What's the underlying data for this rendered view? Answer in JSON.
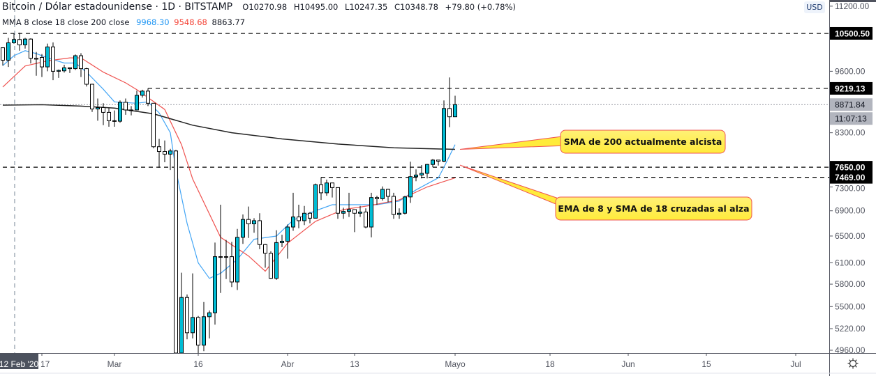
{
  "header": {
    "symbol": "Bitcoin / Dólar estadounidense · 1D · BITSTAMP",
    "open": "O10270.98",
    "high": "H10495.00",
    "low": "L10247.35",
    "close": "C10348.78",
    "change": "+79.80 (+0.78%)",
    "indicator_label": "MMA 8 close 18 close 200 close",
    "ma_values": [
      "9968.30",
      "9548.68",
      "8863.77"
    ]
  },
  "currency": "USD",
  "colors": {
    "up": "#00bcd4",
    "down": "#ffffff",
    "ema8": "#42a5f5",
    "sma18": "#ef5350",
    "sma200": "#222222",
    "callout_fill": "#ffeb3b",
    "callout_border": "#ef5350"
  },
  "chart_data": {
    "type": "candlestick",
    "scale": "log",
    "ylim": [
      4900,
      11300
    ],
    "candles": [
      [
        "2020-02-10",
        10150,
        10160,
        9730,
        9855
      ],
      [
        "2020-02-11",
        9855,
        10390,
        9700,
        10270
      ],
      [
        "2020-02-12",
        10271,
        10495,
        10247,
        10349
      ],
      [
        "2020-02-13",
        10349,
        10520,
        10080,
        10220
      ],
      [
        "2020-02-14",
        10220,
        10390,
        10130,
        10360
      ],
      [
        "2020-02-15",
        10360,
        10380,
        9780,
        9900
      ],
      [
        "2020-02-16",
        9900,
        10050,
        9500,
        9880
      ],
      [
        "2020-02-17",
        9920,
        10000,
        9470,
        9700
      ],
      [
        "2020-02-18",
        9700,
        10250,
        9600,
        10170
      ],
      [
        "2020-02-19",
        10170,
        10280,
        9400,
        9600
      ],
      [
        "2020-02-20",
        9600,
        9640,
        9450,
        9620
      ],
      [
        "2020-02-21",
        9610,
        9750,
        9570,
        9680
      ],
      [
        "2020-02-22",
        9680,
        9690,
        9560,
        9660
      ],
      [
        "2020-02-23",
        9660,
        9990,
        9630,
        9960
      ],
      [
        "2020-02-24",
        9960,
        10020,
        9470,
        9660
      ],
      [
        "2020-02-25",
        9660,
        9680,
        9260,
        9310
      ],
      [
        "2020-02-26",
        9310,
        9320,
        8720,
        8780
      ],
      [
        "2020-02-27",
        8780,
        9000,
        8540,
        8810
      ],
      [
        "2020-02-28",
        8810,
        8900,
        8450,
        8710
      ],
      [
        "2020-02-29",
        8710,
        8800,
        8420,
        8540
      ],
      [
        "2020-03-01",
        8540,
        8750,
        8420,
        8530
      ],
      [
        "2020-03-02",
        8530,
        8960,
        8500,
        8920
      ],
      [
        "2020-03-03",
        8920,
        9000,
        8660,
        8760
      ],
      [
        "2020-03-04",
        8760,
        8840,
        8650,
        8760
      ],
      [
        "2020-03-05",
        8760,
        9170,
        8750,
        9070
      ],
      [
        "2020-03-06",
        9070,
        9190,
        9020,
        9160
      ],
      [
        "2020-03-07",
        9160,
        9219,
        8840,
        8900
      ],
      [
        "2020-03-08",
        8900,
        8900,
        8000,
        8030
      ],
      [
        "2020-03-09",
        8030,
        8180,
        7640,
        7940
      ],
      [
        "2020-03-10",
        7940,
        8150,
        7740,
        7890
      ],
      [
        "2020-03-11",
        7890,
        7990,
        7600,
        7950
      ],
      [
        "2020-03-12",
        7950,
        7970,
        4450,
        4860
      ],
      [
        "2020-03-13",
        4860,
        5960,
        3850,
        5620
      ],
      [
        "2020-03-14",
        5620,
        5660,
        5090,
        5170
      ],
      [
        "2020-03-15",
        5170,
        5950,
        5100,
        5360
      ],
      [
        "2020-03-16",
        5360,
        5380,
        4450,
        5020
      ],
      [
        "2020-03-17",
        5020,
        5560,
        4950,
        5370
      ],
      [
        "2020-03-18",
        5370,
        5450,
        5100,
        5420
      ],
      [
        "2020-03-19",
        5420,
        6400,
        5270,
        6190
      ],
      [
        "2020-03-20",
        6190,
        7000,
        5680,
        6180
      ],
      [
        "2020-03-21",
        6180,
        6440,
        5870,
        6190
      ],
      [
        "2020-03-22",
        6190,
        6410,
        5760,
        5830
      ],
      [
        "2020-03-23",
        5830,
        6610,
        5720,
        6480
      ],
      [
        "2020-03-24",
        6480,
        6840,
        6380,
        6760
      ],
      [
        "2020-03-25",
        6760,
        6970,
        6470,
        6690
      ],
      [
        "2020-03-26",
        6690,
        6780,
        6550,
        6740
      ],
      [
        "2020-03-27",
        6740,
        6860,
        6300,
        6370
      ],
      [
        "2020-03-28",
        6370,
        6380,
        6030,
        6240
      ],
      [
        "2020-03-29",
        6240,
        6270,
        5870,
        5880
      ],
      [
        "2020-03-30",
        5880,
        6590,
        5860,
        6400
      ],
      [
        "2020-03-31",
        6400,
        6520,
        6330,
        6420
      ],
      [
        "2020-04-01",
        6420,
        6680,
        6160,
        6640
      ],
      [
        "2020-04-02",
        6640,
        7200,
        6580,
        6800
      ],
      [
        "2020-04-03",
        6800,
        7000,
        6620,
        6740
      ],
      [
        "2020-04-04",
        6740,
        6980,
        6670,
        6860
      ],
      [
        "2020-04-05",
        6860,
        6880,
        6700,
        6780
      ],
      [
        "2020-04-06",
        6780,
        7360,
        6780,
        7340
      ],
      [
        "2020-04-07",
        7340,
        7469,
        7080,
        7200
      ],
      [
        "2020-04-08",
        7200,
        7430,
        7150,
        7370
      ],
      [
        "2020-04-09",
        7370,
        7370,
        7120,
        7290
      ],
      [
        "2020-04-10",
        7290,
        7290,
        6770,
        6860
      ],
      [
        "2020-04-11",
        6860,
        6950,
        6770,
        6890
      ],
      [
        "2020-04-12",
        6890,
        7200,
        6800,
        6920
      ],
      [
        "2020-04-13",
        6920,
        6920,
        6560,
        6860
      ],
      [
        "2020-04-14",
        6860,
        6980,
        6800,
        6880
      ],
      [
        "2020-04-15",
        6880,
        6940,
        6620,
        6640
      ],
      [
        "2020-04-16",
        6640,
        7200,
        6480,
        7120
      ],
      [
        "2020-04-17",
        7120,
        7150,
        7000,
        7100
      ],
      [
        "2020-04-18",
        7100,
        7310,
        7070,
        7260
      ],
      [
        "2020-04-19",
        7260,
        7270,
        7040,
        7140
      ],
      [
        "2020-04-20",
        7140,
        7200,
        6770,
        6840
      ],
      [
        "2020-04-21",
        6840,
        6940,
        6770,
        6860
      ],
      [
        "2020-04-22",
        6860,
        7150,
        6840,
        7130
      ],
      [
        "2020-04-23",
        7130,
        7750,
        7030,
        7480
      ],
      [
        "2020-04-24",
        7480,
        7610,
        7400,
        7510
      ],
      [
        "2020-04-25",
        7510,
        7690,
        7450,
        7540
      ],
      [
        "2020-04-26",
        7540,
        7710,
        7450,
        7700
      ],
      [
        "2020-04-27",
        7700,
        7800,
        7650,
        7780
      ],
      [
        "2020-04-28",
        7780,
        7780,
        7680,
        7760
      ],
      [
        "2020-04-29",
        7760,
        8960,
        7740,
        8790
      ],
      [
        "2020-04-30",
        8790,
        9460,
        8410,
        8620
      ],
      [
        "2020-05-01",
        8620,
        9060,
        8620,
        8872
      ]
    ],
    "series": [
      {
        "key": "ema8",
        "points": [
          [
            "2020-02-10",
            9730
          ],
          [
            "2020-02-12",
            9960
          ],
          [
            "2020-02-14",
            10080
          ],
          [
            "2020-02-16",
            10010
          ],
          [
            "2020-02-18",
            9910
          ],
          [
            "2020-02-21",
            9790
          ],
          [
            "2020-02-23",
            9790
          ],
          [
            "2020-02-25",
            9580
          ],
          [
            "2020-02-28",
            9200
          ],
          [
            "2020-03-01",
            8930
          ],
          [
            "2020-03-05",
            8900
          ],
          [
            "2020-03-07",
            8930
          ],
          [
            "2020-03-09",
            8700
          ],
          [
            "2020-03-11",
            8300
          ],
          [
            "2020-03-12",
            7600
          ],
          [
            "2020-03-14",
            6700
          ],
          [
            "2020-03-16",
            6100
          ],
          [
            "2020-03-18",
            5880
          ],
          [
            "2020-03-20",
            5950
          ],
          [
            "2020-03-23",
            6150
          ],
          [
            "2020-03-26",
            6450
          ],
          [
            "2020-03-30",
            6500
          ],
          [
            "2020-04-02",
            6750
          ],
          [
            "2020-04-06",
            6900
          ],
          [
            "2020-04-09",
            7000
          ],
          [
            "2020-04-13",
            7000
          ],
          [
            "2020-04-17",
            7000
          ],
          [
            "2020-04-21",
            7060
          ],
          [
            "2020-04-24",
            7250
          ],
          [
            "2020-04-28",
            7460
          ],
          [
            "2020-04-29",
            7650
          ],
          [
            "2020-05-01",
            8070
          ]
        ]
      },
      {
        "key": "sma18",
        "points": [
          [
            "2020-02-10",
            9250
          ],
          [
            "2020-02-14",
            9720
          ],
          [
            "2020-02-18",
            9840
          ],
          [
            "2020-02-22",
            9910
          ],
          [
            "2020-02-24",
            9910
          ],
          [
            "2020-02-28",
            9580
          ],
          [
            "2020-03-03",
            9340
          ],
          [
            "2020-03-05",
            9190
          ],
          [
            "2020-03-10",
            8770
          ],
          [
            "2020-03-13",
            8070
          ],
          [
            "2020-03-15",
            7440
          ],
          [
            "2020-03-20",
            6480
          ],
          [
            "2020-03-25",
            6200
          ],
          [
            "2020-03-28",
            5980
          ],
          [
            "2020-04-01",
            6390
          ],
          [
            "2020-04-06",
            6730
          ],
          [
            "2020-04-11",
            6920
          ],
          [
            "2020-04-16",
            6990
          ],
          [
            "2020-04-21",
            7080
          ],
          [
            "2020-04-26",
            7300
          ],
          [
            "2020-05-01",
            7460
          ]
        ]
      },
      {
        "key": "sma200",
        "points": [
          [
            "2020-02-10",
            8860
          ],
          [
            "2020-02-17",
            8870
          ],
          [
            "2020-02-24",
            8840
          ],
          [
            "2020-03-01",
            8800
          ],
          [
            "2020-03-08",
            8680
          ],
          [
            "2020-03-15",
            8450
          ],
          [
            "2020-03-22",
            8300
          ],
          [
            "2020-03-31",
            8180
          ],
          [
            "2020-04-10",
            8080
          ],
          [
            "2020-04-20",
            8010
          ],
          [
            "2020-05-01",
            7980
          ]
        ]
      }
    ],
    "horizontal_lines": [
      {
        "price": 10500.5,
        "label": "10500.50",
        "from": "2020-02-10",
        "style": "dashed"
      },
      {
        "price": 9219.13,
        "label": "9219.13",
        "from": "2020-03-07",
        "style": "dashed"
      },
      {
        "price": 7650.0,
        "label": "7650.00",
        "from": "2020-02-10",
        "style": "dashed"
      },
      {
        "price": 7469.0,
        "label": "7469.00",
        "from": "2020-04-07",
        "style": "dashed"
      }
    ],
    "last_price": {
      "price": 8871.84,
      "label": "8871.84",
      "countdown": "11:07:13"
    },
    "y_ticks": [
      {
        "price": 11200,
        "label": "11200.00"
      },
      {
        "price": 9600,
        "label": "9600.00"
      },
      {
        "price": 8300,
        "label": "8300.00"
      },
      {
        "price": 7300,
        "label": "7300.00"
      },
      {
        "price": 6900,
        "label": "6900.00"
      },
      {
        "price": 6500,
        "label": "6500.00"
      },
      {
        "price": 6100,
        "label": "6100.00"
      },
      {
        "price": 5800,
        "label": "5800.00"
      },
      {
        "price": 5500,
        "label": "5500.00"
      },
      {
        "price": 5220,
        "label": "5220.00"
      },
      {
        "price": 4960,
        "label": "4960.00"
      }
    ],
    "x_ticks": [
      {
        "date": "2020-02-17",
        "label": "17"
      },
      {
        "date": "2020-03-01",
        "label": "Mar"
      },
      {
        "date": "2020-03-16",
        "label": "16"
      },
      {
        "date": "2020-04-01",
        "label": "Abr"
      },
      {
        "date": "2020-04-13",
        "label": "13"
      },
      {
        "date": "2020-05-01",
        "label": "Mayo"
      },
      {
        "date": "2020-05-18",
        "label": "18"
      },
      {
        "date": "2020-06-01",
        "label": "Jun"
      },
      {
        "date": "2020-06-15",
        "label": "15"
      },
      {
        "date": "2020-07-01",
        "label": "Jul"
      }
    ],
    "crosshair": {
      "date": "2020-02-12",
      "label": "12 Feb '20"
    },
    "annotations": [
      {
        "text": "SMA de 200 actualmente alcista",
        "target": [
          "2020-05-02",
          7980
        ]
      },
      {
        "text": "EMA de 8 y SMA de 18 cruzadas al alza",
        "target": [
          "2020-05-02",
          7650
        ]
      }
    ]
  },
  "icons": {
    "settings": "gear-icon"
  }
}
